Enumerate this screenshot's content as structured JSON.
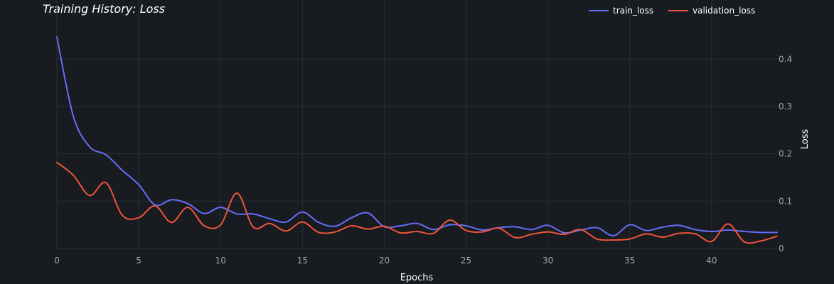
{
  "chart_data": {
    "type": "line",
    "title": "Training History: Loss",
    "xlabel": "Epochs",
    "ylabel": "Loss",
    "xlim": [
      0,
      44
    ],
    "ylim": [
      0,
      0.45
    ],
    "x_ticks": [
      0,
      5,
      10,
      15,
      20,
      25,
      30,
      35,
      40
    ],
    "y_ticks": [
      0,
      0.1,
      0.2,
      0.3,
      0.4
    ],
    "y_tick_labels": [
      "0",
      "0.1",
      "0.2",
      "0.3",
      "0.4"
    ],
    "grid": true,
    "legend_position": "top-right",
    "x": [
      0,
      1,
      2,
      3,
      4,
      5,
      6,
      7,
      8,
      9,
      10,
      11,
      12,
      13,
      14,
      15,
      16,
      17,
      18,
      19,
      20,
      21,
      22,
      23,
      24,
      25,
      26,
      27,
      28,
      29,
      30,
      31,
      32,
      33,
      34,
      35,
      36,
      37,
      38,
      39,
      40,
      41,
      42,
      43,
      44
    ],
    "series": [
      {
        "name": "train_loss",
        "color": "#636efa",
        "values": [
          0.447,
          0.28,
          0.215,
          0.198,
          0.165,
          0.135,
          0.092,
          0.103,
          0.095,
          0.074,
          0.087,
          0.073,
          0.073,
          0.063,
          0.056,
          0.077,
          0.055,
          0.047,
          0.065,
          0.075,
          0.046,
          0.048,
          0.053,
          0.04,
          0.05,
          0.048,
          0.039,
          0.044,
          0.046,
          0.04,
          0.049,
          0.033,
          0.039,
          0.044,
          0.027,
          0.05,
          0.038,
          0.045,
          0.049,
          0.04,
          0.036,
          0.039,
          0.036,
          0.034,
          0.034
        ]
      },
      {
        "name": "validation_loss",
        "color": "#ef553b",
        "values": [
          0.182,
          0.155,
          0.112,
          0.139,
          0.07,
          0.065,
          0.09,
          0.055,
          0.087,
          0.048,
          0.05,
          0.117,
          0.045,
          0.053,
          0.037,
          0.056,
          0.034,
          0.035,
          0.048,
          0.041,
          0.047,
          0.033,
          0.036,
          0.032,
          0.06,
          0.038,
          0.035,
          0.043,
          0.023,
          0.03,
          0.035,
          0.03,
          0.04,
          0.02,
          0.018,
          0.02,
          0.031,
          0.024,
          0.032,
          0.031,
          0.015,
          0.052,
          0.014,
          0.016,
          0.026
        ]
      }
    ]
  }
}
